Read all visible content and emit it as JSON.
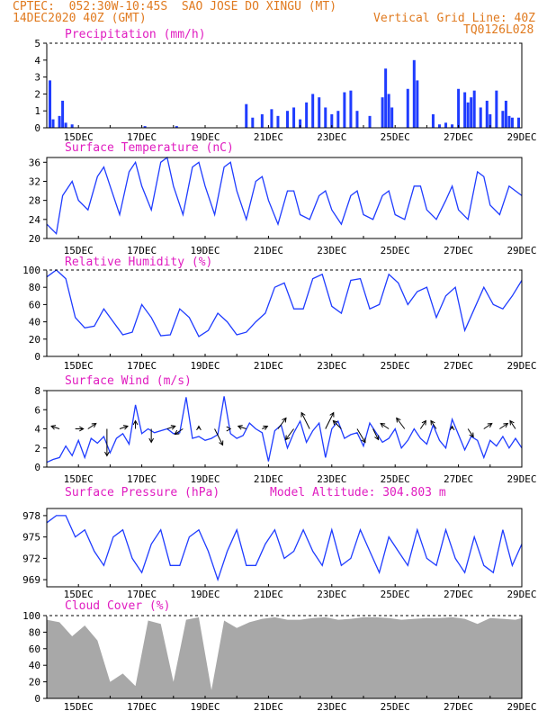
{
  "header": {
    "line1_left": "CPTEC:  052:30W-10:45S  SAO JOSE DO XINGU (MT)",
    "line1_right": "VERTICAL GRID LINE: 40Z",
    "line2_left": "14DEC2020 40Z (GMT)",
    "line2_right": "Vertical Grid Line: 40Z",
    "line3_right": "TQ0126L028"
  },
  "colors": {
    "header": "#e07a1f",
    "panel_title": "#e01cc0",
    "series": "#1f3cff",
    "cloud": "#a8a8a8",
    "axis": "#000000"
  },
  "x_tick_labels": [
    "15DEC",
    "17DEC",
    "19DEC",
    "21DEC",
    "23DEC",
    "25DEC",
    "27DEC",
    "29DEC"
  ],
  "chart_data": [
    {
      "type": "bar",
      "title": "Precipitation (mm/h)",
      "ylim": [
        0,
        5
      ],
      "yticks": [
        0,
        1,
        2,
        3,
        4,
        5
      ],
      "x_day_range": [
        14,
        29
      ],
      "x": [
        14.1,
        14.2,
        14.4,
        14.5,
        14.6,
        14.8,
        17.1,
        18.1,
        20.3,
        20.5,
        20.8,
        21.1,
        21.3,
        21.6,
        21.8,
        22.0,
        22.2,
        22.4,
        22.6,
        22.8,
        23.0,
        23.2,
        23.4,
        23.6,
        23.8,
        24.2,
        24.6,
        24.7,
        24.8,
        24.9,
        25.4,
        25.6,
        25.7,
        26.2,
        26.4,
        26.6,
        26.8,
        27.0,
        27.2,
        27.3,
        27.4,
        27.5,
        27.7,
        27.9,
        28.0,
        28.2,
        28.4,
        28.5,
        28.6,
        28.7,
        28.9
      ],
      "values": [
        2.8,
        0.5,
        0.7,
        1.6,
        0.3,
        0.2,
        0.1,
        0.1,
        1.4,
        0.6,
        0.8,
        1.1,
        0.7,
        1.0,
        1.2,
        0.5,
        1.5,
        2.0,
        1.8,
        1.2,
        0.8,
        1.0,
        2.1,
        2.2,
        1.0,
        0.7,
        1.8,
        3.5,
        2.0,
        1.2,
        2.3,
        4.0,
        2.8,
        0.8,
        0.2,
        0.3,
        0.2,
        2.3,
        2.1,
        1.5,
        1.8,
        2.2,
        1.2,
        1.6,
        0.8,
        2.2,
        1.0,
        1.6,
        0.7,
        0.6,
        0.6
      ]
    },
    {
      "type": "line",
      "title": "Surface Temperature (nC)",
      "ylim": [
        20,
        37
      ],
      "yticks": [
        20,
        24,
        28,
        32,
        36
      ],
      "x_day_range": [
        14,
        29
      ],
      "x": [
        14.0,
        14.3,
        14.5,
        14.8,
        15.0,
        15.3,
        15.6,
        15.8,
        16.0,
        16.3,
        16.6,
        16.8,
        17.0,
        17.3,
        17.6,
        17.8,
        18.0,
        18.3,
        18.6,
        18.8,
        19.0,
        19.3,
        19.6,
        19.8,
        20.0,
        20.3,
        20.6,
        20.8,
        21.0,
        21.3,
        21.6,
        21.8,
        22.0,
        22.3,
        22.6,
        22.8,
        23.0,
        23.3,
        23.6,
        23.8,
        24.0,
        24.3,
        24.6,
        24.8,
        25.0,
        25.3,
        25.6,
        25.8,
        26.0,
        26.3,
        26.6,
        26.8,
        27.0,
        27.3,
        27.6,
        27.8,
        28.0,
        28.3,
        28.6,
        28.8,
        29.0
      ],
      "values": [
        23,
        21,
        29,
        32,
        28,
        26,
        33,
        35,
        31,
        25,
        34,
        36,
        31,
        26,
        36,
        37,
        31,
        25,
        35,
        36,
        31,
        25,
        35,
        36,
        30,
        24,
        32,
        33,
        28,
        23,
        30,
        30,
        25,
        24,
        29,
        30,
        26,
        23,
        29,
        30,
        25,
        24,
        29,
        30,
        25,
        24,
        31,
        31,
        26,
        24,
        28,
        31,
        26,
        24,
        34,
        33,
        27,
        25,
        31,
        30,
        29
      ]
    },
    {
      "type": "line",
      "title": "Relative Humidity (%)",
      "ylim": [
        0,
        100
      ],
      "yticks": [
        0,
        20,
        40,
        60,
        80,
        100
      ],
      "x_day_range": [
        14,
        29
      ],
      "x": [
        14.0,
        14.3,
        14.6,
        14.9,
        15.2,
        15.5,
        15.8,
        16.1,
        16.4,
        16.7,
        17.0,
        17.3,
        17.6,
        17.9,
        18.2,
        18.5,
        18.8,
        19.1,
        19.4,
        19.7,
        20.0,
        20.3,
        20.6,
        20.9,
        21.2,
        21.5,
        21.8,
        22.1,
        22.4,
        22.7,
        23.0,
        23.3,
        23.6,
        23.9,
        24.2,
        24.5,
        24.8,
        25.1,
        25.4,
        25.7,
        26.0,
        26.3,
        26.6,
        26.9,
        27.2,
        27.5,
        27.8,
        28.1,
        28.4,
        28.7,
        29.0
      ],
      "values": [
        92,
        100,
        90,
        45,
        33,
        35,
        55,
        40,
        25,
        28,
        60,
        45,
        24,
        25,
        55,
        45,
        23,
        30,
        50,
        40,
        25,
        28,
        40,
        50,
        80,
        85,
        55,
        55,
        90,
        95,
        58,
        50,
        88,
        90,
        55,
        60,
        95,
        85,
        60,
        75,
        80,
        45,
        70,
        80,
        30,
        55,
        80,
        60,
        55,
        70,
        88
      ]
    },
    {
      "type": "line",
      "title": "Surface Wind (m/s)",
      "ylim": [
        0,
        8
      ],
      "yticks": [
        0,
        2,
        4,
        6,
        8
      ],
      "x_day_range": [
        14,
        29
      ],
      "x": [
        14.0,
        14.2,
        14.4,
        14.6,
        14.8,
        15.0,
        15.2,
        15.4,
        15.6,
        15.8,
        16.0,
        16.2,
        16.4,
        16.6,
        16.8,
        17.0,
        17.2,
        17.4,
        17.6,
        17.8,
        18.0,
        18.2,
        18.4,
        18.6,
        18.8,
        19.0,
        19.2,
        19.4,
        19.6,
        19.8,
        20.0,
        20.2,
        20.4,
        20.6,
        20.8,
        21.0,
        21.2,
        21.4,
        21.6,
        21.8,
        22.0,
        22.2,
        22.4,
        22.6,
        22.8,
        23.0,
        23.2,
        23.4,
        23.6,
        23.8,
        24.0,
        24.2,
        24.4,
        24.6,
        24.8,
        25.0,
        25.2,
        25.4,
        25.6,
        25.8,
        26.0,
        26.2,
        26.4,
        26.6,
        26.8,
        27.0,
        27.2,
        27.4,
        27.6,
        27.8,
        28.0,
        28.2,
        28.4,
        28.6,
        28.8,
        29.0
      ],
      "values": [
        0.5,
        0.8,
        1.0,
        2.2,
        1.2,
        2.8,
        1.0,
        3.0,
        2.5,
        3.2,
        1.5,
        3.0,
        3.5,
        2.4,
        6.5,
        3.5,
        4.0,
        3.6,
        3.8,
        4.0,
        3.5,
        3.6,
        7.3,
        3.0,
        3.2,
        2.8,
        3.0,
        3.4,
        7.4,
        3.5,
        3.0,
        3.3,
        4.6,
        4.0,
        3.6,
        0.6,
        3.8,
        4.4,
        2.0,
        3.6,
        4.8,
        2.6,
        3.8,
        4.6,
        1.0,
        4.0,
        4.8,
        3.0,
        3.4,
        3.6,
        2.2,
        4.6,
        3.6,
        2.6,
        3.0,
        4.0,
        2.0,
        2.8,
        4.0,
        3.0,
        2.4,
        4.4,
        2.8,
        2.0,
        5.0,
        3.4,
        1.8,
        3.2,
        2.8,
        1.0,
        2.8,
        2.2,
        3.2,
        2.0,
        3.0,
        2.0
      ]
    },
    {
      "type": "line",
      "title": "Surface Pressure (hPa)",
      "annotation": "Model Altitude: 304.803 m",
      "ylim": [
        968,
        979
      ],
      "yticks": [
        969,
        972,
        975,
        978
      ],
      "x_day_range": [
        14,
        29
      ],
      "x": [
        14.0,
        14.3,
        14.6,
        14.9,
        15.2,
        15.5,
        15.8,
        16.1,
        16.4,
        16.7,
        17.0,
        17.3,
        17.6,
        17.9,
        18.2,
        18.5,
        18.8,
        19.1,
        19.4,
        19.7,
        20.0,
        20.3,
        20.6,
        20.9,
        21.2,
        21.5,
        21.8,
        22.1,
        22.4,
        22.7,
        23.0,
        23.3,
        23.6,
        23.9,
        24.2,
        24.5,
        24.8,
        25.1,
        25.4,
        25.7,
        26.0,
        26.3,
        26.6,
        26.9,
        27.2,
        27.5,
        27.8,
        28.1,
        28.4,
        28.7,
        29.0
      ],
      "values": [
        977,
        978,
        978,
        975,
        976,
        973,
        971,
        975,
        976,
        972,
        970,
        974,
        976,
        971,
        971,
        975,
        976,
        973,
        969,
        973,
        976,
        971,
        971,
        974,
        976,
        972,
        973,
        976,
        973,
        971,
        976,
        971,
        972,
        976,
        973,
        970,
        975,
        973,
        971,
        976,
        972,
        971,
        976,
        972,
        970,
        975,
        971,
        970,
        976,
        971,
        974
      ]
    },
    {
      "type": "area",
      "title": "Cloud Cover (%)",
      "ylim": [
        0,
        100
      ],
      "yticks": [
        0,
        20,
        40,
        60,
        80,
        100
      ],
      "x_day_range": [
        14,
        29
      ],
      "x": [
        14.0,
        14.4,
        14.8,
        15.2,
        15.6,
        16.0,
        16.4,
        16.8,
        17.2,
        17.6,
        18.0,
        18.4,
        18.8,
        19.2,
        19.6,
        20.0,
        20.4,
        20.8,
        21.2,
        21.6,
        22.0,
        22.4,
        22.8,
        23.2,
        23.6,
        24.0,
        24.4,
        24.8,
        25.2,
        25.6,
        26.0,
        26.4,
        26.8,
        27.2,
        27.6,
        28.0,
        28.4,
        28.8,
        29.0
      ],
      "values": [
        95,
        92,
        75,
        88,
        70,
        20,
        30,
        15,
        94,
        90,
        20,
        95,
        98,
        10,
        94,
        85,
        92,
        96,
        98,
        95,
        95,
        97,
        98,
        95,
        96,
        98,
        98,
        97,
        95,
        96,
        97,
        97,
        98,
        96,
        90,
        97,
        96,
        95,
        97
      ]
    }
  ],
  "vectors": {
    "day": [
      14.4,
      14.9,
      15.3,
      15.9,
      16.3,
      16.8,
      17.3,
      17.8,
      18.3,
      18.8,
      19.3,
      19.8,
      20.3,
      20.8,
      21.3,
      21.8,
      22.3,
      22.8,
      23.3,
      23.8,
      24.3,
      24.8,
      25.3,
      25.8,
      26.3,
      26.8,
      27.3,
      27.8,
      28.3,
      28.8
    ],
    "u": [
      -0.3,
      0.3,
      0.3,
      0.0,
      0.3,
      0.0,
      0.0,
      0.3,
      -0.3,
      0.0,
      0.3,
      0.0,
      -0.3,
      0.2,
      0.3,
      -0.3,
      -0.3,
      0.3,
      -0.3,
      0.3,
      0.2,
      -0.3,
      -0.3,
      0.2,
      -0.2,
      0.0,
      0.2,
      0.3,
      0.3,
      -0.2
    ],
    "v": [
      0.1,
      0.0,
      0.2,
      -1.0,
      0.1,
      0.3,
      -0.5,
      0.1,
      -0.2,
      0.1,
      -0.6,
      0.0,
      0.1,
      0.1,
      0.4,
      -0.4,
      0.6,
      0.6,
      0.3,
      -0.5,
      -0.4,
      0.2,
      0.4,
      0.3,
      0.3,
      0.1,
      -0.3,
      0.2,
      0.2,
      0.3
    ]
  }
}
